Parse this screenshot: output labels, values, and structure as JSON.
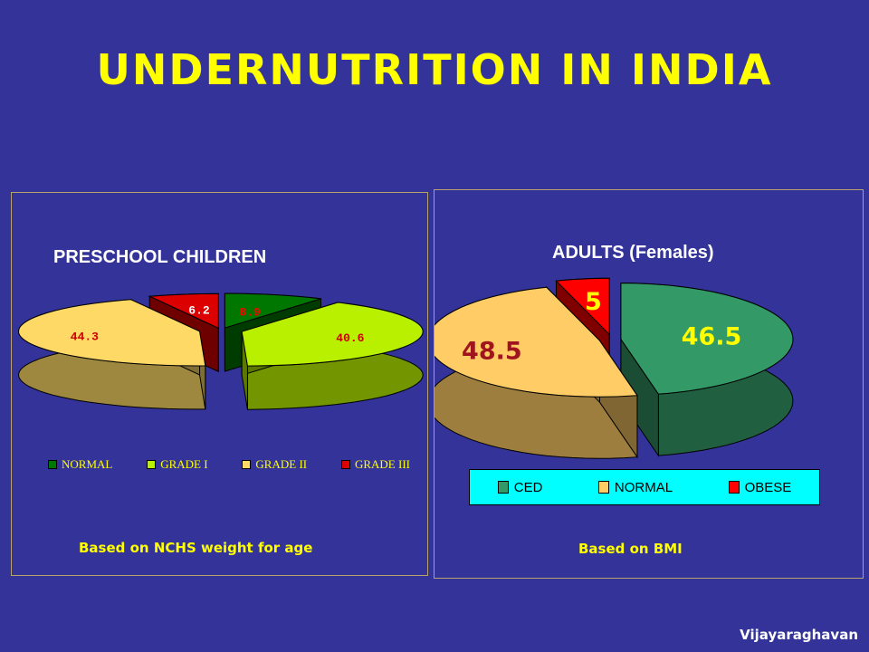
{
  "title": "UNDERNUTRITION IN INDIA",
  "credit": "Vijayaraghavan",
  "colors": {
    "background": "#333399",
    "title": "#ffff00",
    "caption": "#ffff00"
  },
  "chart_data": [
    {
      "type": "pie",
      "subtype": "3d-exploded",
      "title": "PRESCHOOL CHILDREN",
      "caption": "Based on NCHS weight for age",
      "categories": [
        "NORMAL",
        "GRADE I",
        "GRADE II",
        "GRADE III"
      ],
      "values": [
        8.9,
        40.6,
        44.3,
        6.2
      ],
      "value_labels": [
        "8.9",
        "40.6",
        "44.3",
        "6.2"
      ],
      "colors": [
        "#007700",
        "#b8f000",
        "#ffd966",
        "#dd0000"
      ],
      "legend_position": "bottom"
    },
    {
      "type": "pie",
      "subtype": "3d-exploded",
      "title": "ADULTS (Females)",
      "caption": "Based on BMI",
      "categories": [
        "CED",
        "NORMAL",
        "OBESE"
      ],
      "values": [
        46.5,
        48.5,
        5
      ],
      "value_labels": [
        "46.5",
        "48.5",
        "5"
      ],
      "colors": [
        "#339966",
        "#ffcc66",
        "#ff0000"
      ],
      "legend_position": "bottom"
    }
  ]
}
